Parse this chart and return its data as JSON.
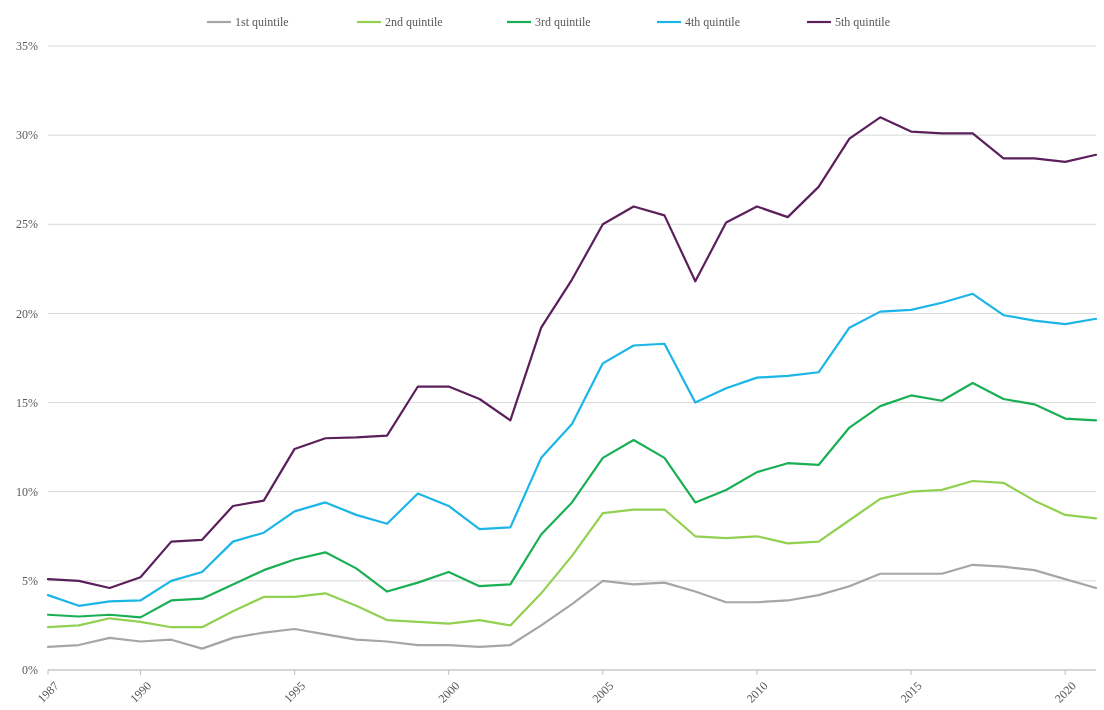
{
  "chart_data": {
    "type": "line",
    "x": [
      1987,
      1988,
      1989,
      1990,
      1991,
      1992,
      1993,
      1994,
      1995,
      1996,
      1997,
      1998,
      1999,
      2000,
      2001,
      2002,
      2003,
      2004,
      2005,
      2006,
      2007,
      2008,
      2009,
      2010,
      2011,
      2012,
      2013,
      2014,
      2015,
      2016,
      2017,
      2018,
      2019,
      2020,
      2021
    ],
    "series": [
      {
        "name": "1st quintile",
        "color": "#a6a6a6",
        "values": [
          1.3,
          1.4,
          1.8,
          1.6,
          1.7,
          1.2,
          1.8,
          2.1,
          2.3,
          2.0,
          1.7,
          1.6,
          1.4,
          1.4,
          1.3,
          1.4,
          2.5,
          3.7,
          5.0,
          4.8,
          4.9,
          4.4,
          3.8,
          3.8,
          3.9,
          4.2,
          4.7,
          5.4,
          5.4,
          5.4,
          5.9,
          5.8,
          5.6,
          5.1,
          4.6
        ]
      },
      {
        "name": "2nd quintile",
        "color": "#92d050",
        "values": [
          2.4,
          2.5,
          2.9,
          2.7,
          2.4,
          2.4,
          3.3,
          4.1,
          4.1,
          4.3,
          3.6,
          2.8,
          2.7,
          2.6,
          2.8,
          2.5,
          4.3,
          6.4,
          8.8,
          9.0,
          9.0,
          7.5,
          7.4,
          7.5,
          7.1,
          7.2,
          8.4,
          9.6,
          10.0,
          10.1,
          10.6,
          10.5,
          9.5,
          8.7,
          8.5
        ]
      },
      {
        "name": "3rd quintile",
        "color": "#1aaf54",
        "values": [
          3.1,
          3.0,
          3.1,
          2.95,
          3.9,
          4.0,
          4.8,
          5.6,
          6.2,
          6.6,
          5.7,
          4.4,
          4.9,
          5.5,
          4.7,
          4.8,
          7.6,
          9.4,
          11.9,
          12.9,
          11.9,
          9.4,
          10.1,
          11.1,
          11.6,
          11.5,
          13.6,
          14.8,
          15.4,
          15.1,
          16.1,
          15.2,
          14.9,
          14.1,
          14.0
        ]
      },
      {
        "name": "4th quintile",
        "color": "#1cb5e8",
        "values": [
          4.2,
          3.6,
          3.85,
          3.9,
          5.0,
          5.5,
          7.2,
          7.7,
          8.9,
          9.4,
          8.7,
          8.2,
          9.9,
          9.2,
          7.9,
          8.0,
          11.9,
          13.8,
          17.2,
          18.2,
          18.3,
          15.0,
          15.8,
          16.4,
          16.5,
          16.7,
          19.2,
          20.1,
          20.2,
          20.6,
          21.1,
          19.9,
          19.6,
          19.4,
          19.7
        ]
      },
      {
        "name": "5th quintile",
        "color": "#5b1f5b",
        "values": [
          5.1,
          5.0,
          4.6,
          5.2,
          7.2,
          7.3,
          9.2,
          9.5,
          12.4,
          13.0,
          13.05,
          13.15,
          15.9,
          15.9,
          15.2,
          14.0,
          19.2,
          21.9,
          25.0,
          26.0,
          25.5,
          21.8,
          25.1,
          26.0,
          25.4,
          27.1,
          29.8,
          31.0,
          30.2,
          30.1,
          30.1,
          28.7,
          28.7,
          28.5,
          28.9
        ]
      }
    ],
    "xlim": [
      1987,
      2021
    ],
    "xticks": [
      1987,
      1990,
      1995,
      2000,
      2005,
      2010,
      2015,
      2020
    ],
    "ylim": [
      0,
      35
    ],
    "yticks": [
      {
        "value": 0,
        "label": "0%"
      },
      {
        "value": 5,
        "label": "5%"
      },
      {
        "value": 10,
        "label": "10%"
      },
      {
        "value": 15,
        "label": "15%"
      },
      {
        "value": 20,
        "label": "20%"
      },
      {
        "value": 25,
        "label": "25%"
      },
      {
        "value": 30,
        "label": "30%"
      },
      {
        "value": 35,
        "label": "35%"
      }
    ],
    "grid": "y",
    "legend": "top",
    "marker": "none",
    "line_style": "solid"
  }
}
